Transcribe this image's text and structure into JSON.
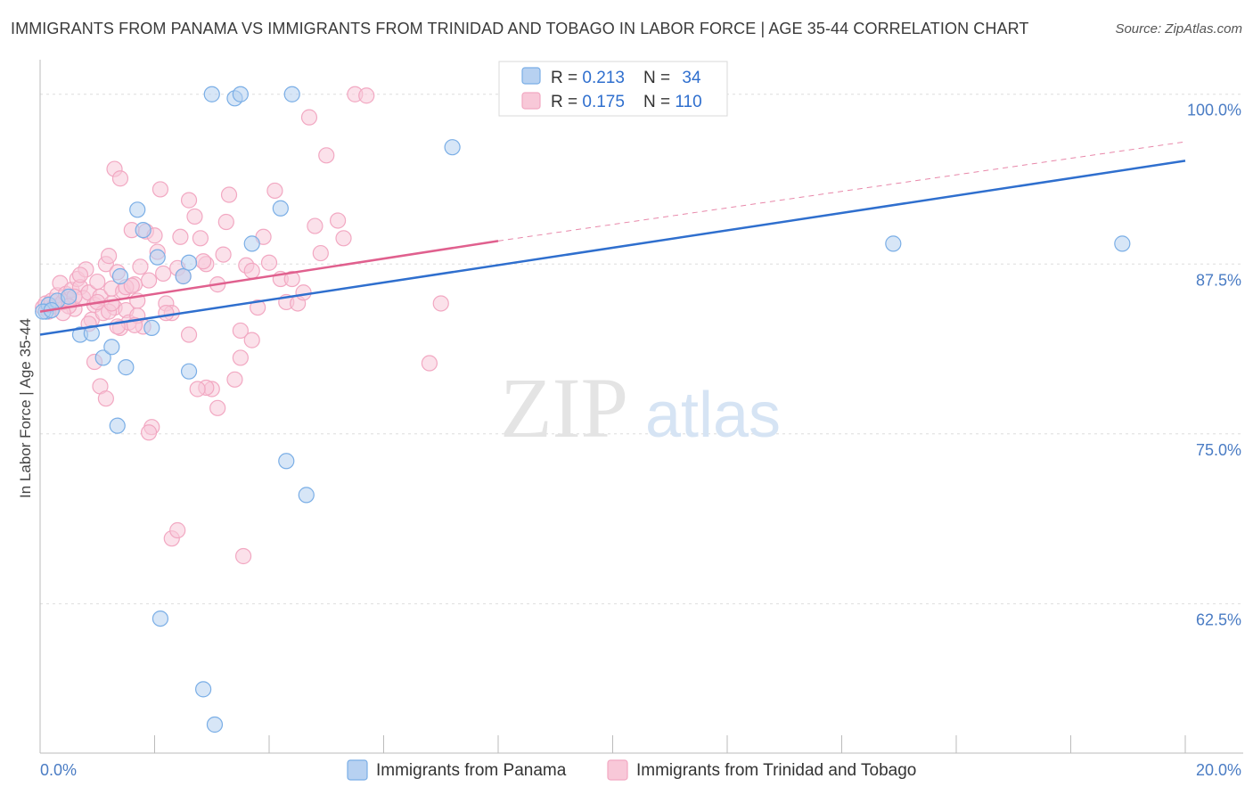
{
  "chart_data": {
    "type": "scatter",
    "title": "IMMIGRANTS FROM PANAMA VS IMMIGRANTS FROM TRINIDAD AND TOBAGO IN LABOR FORCE | AGE 35-44 CORRELATION CHART",
    "source": "Source: ZipAtlas.com",
    "ylabel": "In Labor Force | Age 35-44",
    "xlim": [
      0,
      20
    ],
    "ylim": [
      51.5,
      103
    ],
    "x_tick_labels": [
      {
        "value": 0,
        "label": "0.0%"
      },
      {
        "value": 20,
        "label": "20.0%"
      }
    ],
    "y_tick_labels": [
      {
        "value": 100,
        "label": "100.0%"
      },
      {
        "value": 87.5,
        "label": "87.5%"
      },
      {
        "value": 75,
        "label": "75.0%"
      },
      {
        "value": 62.5,
        "label": "62.5%"
      }
    ],
    "watermark": {
      "zip": "ZIP",
      "atlas": "atlas"
    },
    "series": [
      {
        "name": "Immigrants from Panama",
        "color": "#7aaee6",
        "line_color": "#2f6fce",
        "stats": {
          "r_label": "R = ",
          "r": "0.213",
          "n_label": "N = ",
          "n": "34"
        },
        "trend": {
          "x0": 0,
          "y0": 82.3,
          "x1": 20,
          "y1": 95.1
        },
        "points": [
          [
            0.1,
            84.0
          ],
          [
            0.15,
            84.5
          ],
          [
            0.3,
            84.8
          ],
          [
            0.5,
            85.1
          ],
          [
            0.7,
            82.3
          ],
          [
            0.9,
            82.4
          ],
          [
            1.1,
            80.6
          ],
          [
            1.25,
            81.4
          ],
          [
            1.35,
            75.6
          ],
          [
            1.4,
            86.6
          ],
          [
            1.5,
            79.9
          ],
          [
            1.7,
            91.5
          ],
          [
            1.8,
            90.0
          ],
          [
            1.95,
            82.8
          ],
          [
            2.05,
            88.0
          ],
          [
            2.1,
            61.4
          ],
          [
            2.5,
            86.6
          ],
          [
            2.6,
            87.6
          ],
          [
            2.6,
            79.6
          ],
          [
            2.85,
            56.2
          ],
          [
            3.0,
            100.0
          ],
          [
            3.05,
            53.6
          ],
          [
            3.4,
            99.7
          ],
          [
            3.5,
            100.0
          ],
          [
            3.7,
            89.0
          ],
          [
            4.2,
            91.6
          ],
          [
            4.3,
            73.0
          ],
          [
            4.4,
            100.0
          ],
          [
            4.65,
            70.5
          ],
          [
            7.2,
            96.1
          ],
          [
            14.9,
            89.0
          ],
          [
            18.9,
            89.0
          ],
          [
            0.05,
            84.0
          ],
          [
            0.2,
            84.1
          ]
        ]
      },
      {
        "name": "Immigrants from Trinidad and Tobago",
        "color": "#f2a8c2",
        "line_color": "#e0608e",
        "stats": {
          "r_label": "R = ",
          "r": "0.175",
          "n_label": "N = ",
          "n": "110"
        },
        "trend": {
          "x0": 0,
          "y0": 84.0,
          "x1": 8.0,
          "y1": 89.2
        },
        "trend_ext": {
          "x0": 8.0,
          "y0": 89.2,
          "x1": 20,
          "y1": 96.5
        },
        "points": [
          [
            0.05,
            84.3
          ],
          [
            0.1,
            84.6
          ],
          [
            0.15,
            84.0
          ],
          [
            0.2,
            84.8
          ],
          [
            0.25,
            84.4
          ],
          [
            0.3,
            85.2
          ],
          [
            0.35,
            86.1
          ],
          [
            0.4,
            84.7
          ],
          [
            0.45,
            85.3
          ],
          [
            0.5,
            84.9
          ],
          [
            0.55,
            85.6
          ],
          [
            0.6,
            84.2
          ],
          [
            0.65,
            86.4
          ],
          [
            0.7,
            85.8
          ],
          [
            0.75,
            85.0
          ],
          [
            0.8,
            87.1
          ],
          [
            0.85,
            85.4
          ],
          [
            0.9,
            83.4
          ],
          [
            0.95,
            84.5
          ],
          [
            1.0,
            86.2
          ],
          [
            1.05,
            85.1
          ],
          [
            1.1,
            83.9
          ],
          [
            1.15,
            87.5
          ],
          [
            1.2,
            88.1
          ],
          [
            1.25,
            85.7
          ],
          [
            1.3,
            84.3
          ],
          [
            1.35,
            86.9
          ],
          [
            1.4,
            82.8
          ],
          [
            1.45,
            85.5
          ],
          [
            1.5,
            84.1
          ],
          [
            1.55,
            83.2
          ],
          [
            1.6,
            90.0
          ],
          [
            1.65,
            86.0
          ],
          [
            1.7,
            84.8
          ],
          [
            1.75,
            87.3
          ],
          [
            1.8,
            82.9
          ],
          [
            1.85,
            89.9
          ],
          [
            1.9,
            86.3
          ],
          [
            1.95,
            75.5
          ],
          [
            2.0,
            89.6
          ],
          [
            2.05,
            88.4
          ],
          [
            2.1,
            93.0
          ],
          [
            2.15,
            86.8
          ],
          [
            2.2,
            84.6
          ],
          [
            2.3,
            83.9
          ],
          [
            2.4,
            87.2
          ],
          [
            2.5,
            86.6
          ],
          [
            2.6,
            82.3
          ],
          [
            2.7,
            91.0
          ],
          [
            2.8,
            89.4
          ],
          [
            2.9,
            87.5
          ],
          [
            3.0,
            78.3
          ],
          [
            3.1,
            86.0
          ],
          [
            3.2,
            88.2
          ],
          [
            3.3,
            92.6
          ],
          [
            3.4,
            79.0
          ],
          [
            3.5,
            82.6
          ],
          [
            3.6,
            87.4
          ],
          [
            3.7,
            81.9
          ],
          [
            3.8,
            84.3
          ],
          [
            3.9,
            89.5
          ],
          [
            4.0,
            87.6
          ],
          [
            4.1,
            92.9
          ],
          [
            4.2,
            86.4
          ],
          [
            4.3,
            84.7
          ],
          [
            4.5,
            84.6
          ],
          [
            4.6,
            85.4
          ],
          [
            4.7,
            98.3
          ],
          [
            4.8,
            90.3
          ],
          [
            4.9,
            88.3
          ],
          [
            5.0,
            95.5
          ],
          [
            5.2,
            90.7
          ],
          [
            5.3,
            89.4
          ],
          [
            5.5,
            100.0
          ],
          [
            5.7,
            99.9
          ],
          [
            6.8,
            80.2
          ],
          [
            7.0,
            84.6
          ],
          [
            1.3,
            94.5
          ],
          [
            1.4,
            93.8
          ],
          [
            1.7,
            83.7
          ],
          [
            1.9,
            75.1
          ],
          [
            2.3,
            67.3
          ],
          [
            2.4,
            67.9
          ],
          [
            3.55,
            66.0
          ],
          [
            2.9,
            78.4
          ],
          [
            3.1,
            76.9
          ],
          [
            2.6,
            92.2
          ],
          [
            3.7,
            87.0
          ],
          [
            0.95,
            80.3
          ],
          [
            1.05,
            78.5
          ],
          [
            1.15,
            77.6
          ],
          [
            2.2,
            83.9
          ],
          [
            2.75,
            78.3
          ],
          [
            3.5,
            80.6
          ],
          [
            4.4,
            86.4
          ],
          [
            1.5,
            85.8
          ],
          [
            1.6,
            85.9
          ],
          [
            0.6,
            85.1
          ],
          [
            0.7,
            86.7
          ],
          [
            1.0,
            84.7
          ],
          [
            1.2,
            84.0
          ],
          [
            0.85,
            83.1
          ],
          [
            1.35,
            82.9
          ],
          [
            2.45,
            89.5
          ],
          [
            0.5,
            84.4
          ],
          [
            0.4,
            83.9
          ],
          [
            3.25,
            90.6
          ],
          [
            2.85,
            87.7
          ],
          [
            1.25,
            84.6
          ],
          [
            1.65,
            83.0
          ]
        ]
      }
    ]
  }
}
